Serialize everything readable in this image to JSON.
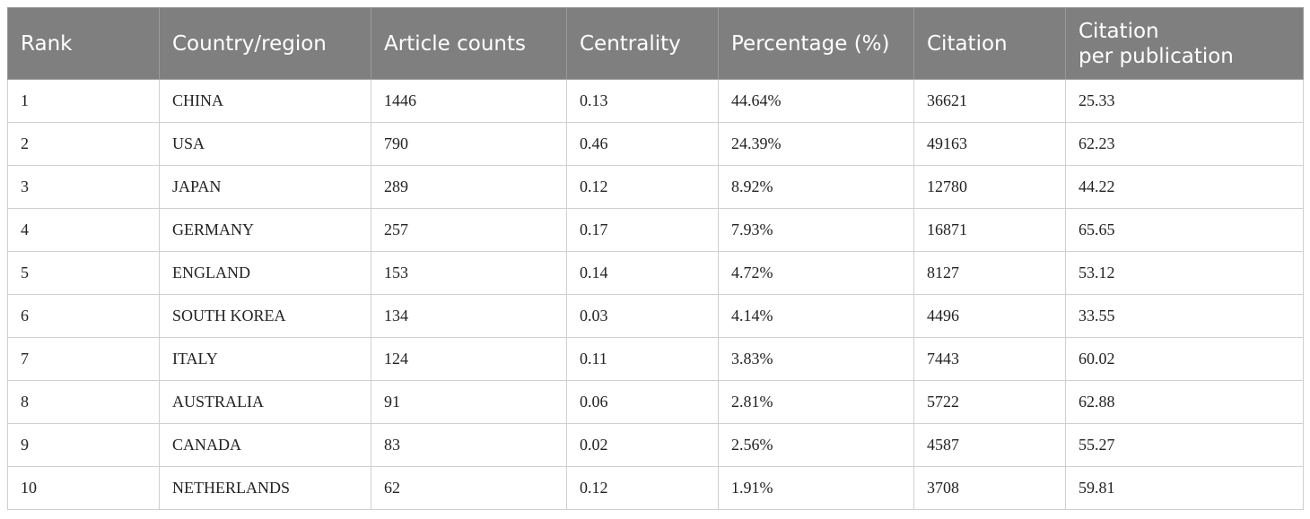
{
  "table": {
    "headers": [
      "Rank",
      "Country/region",
      "Article counts",
      "Centrality",
      "Percentage (%)",
      "Citation",
      "Citation per publication"
    ],
    "rows": [
      [
        "1",
        "CHINA",
        "1446",
        "0.13",
        "44.64%",
        "36621",
        "25.33"
      ],
      [
        "2",
        "USA",
        "790",
        "0.46",
        "24.39%",
        "49163",
        "62.23"
      ],
      [
        "3",
        "JAPAN",
        "289",
        "0.12",
        "8.92%",
        "12780",
        "44.22"
      ],
      [
        "4",
        "GERMANY",
        "257",
        "0.17",
        "7.93%",
        "16871",
        "65.65"
      ],
      [
        "5",
        "ENGLAND",
        "153",
        "0.14",
        "4.72%",
        "8127",
        "53.12"
      ],
      [
        "6",
        "SOUTH KOREA",
        "134",
        "0.03",
        "4.14%",
        "4496",
        "33.55"
      ],
      [
        "7",
        "ITALY",
        "124",
        "0.11",
        "3.83%",
        "7443",
        "60.02"
      ],
      [
        "8",
        "AUSTRALIA",
        "91",
        "0.06",
        "2.81%",
        "5722",
        "62.88"
      ],
      [
        "9",
        "CANADA",
        "83",
        "0.02",
        "2.56%",
        "4587",
        "55.27"
      ],
      [
        "10",
        "NETHERLANDS",
        "62",
        "0.12",
        "1.91%",
        "3708",
        "59.81"
      ]
    ]
  }
}
